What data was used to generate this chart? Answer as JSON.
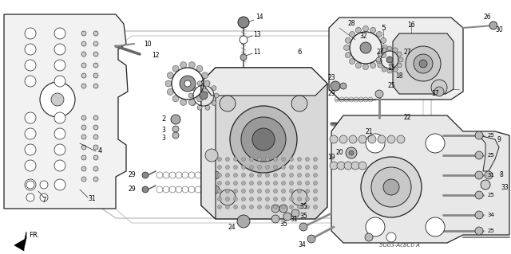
{
  "bg_color": "#ffffff",
  "diagram_code": "5G03-Ac8C0 A",
  "figsize": [
    6.4,
    3.19
  ],
  "dpi": 100,
  "line_color": "#222222",
  "gray_fill": "#e8e8e8",
  "dark_gray": "#888888",
  "mid_gray": "#aaaaaa"
}
